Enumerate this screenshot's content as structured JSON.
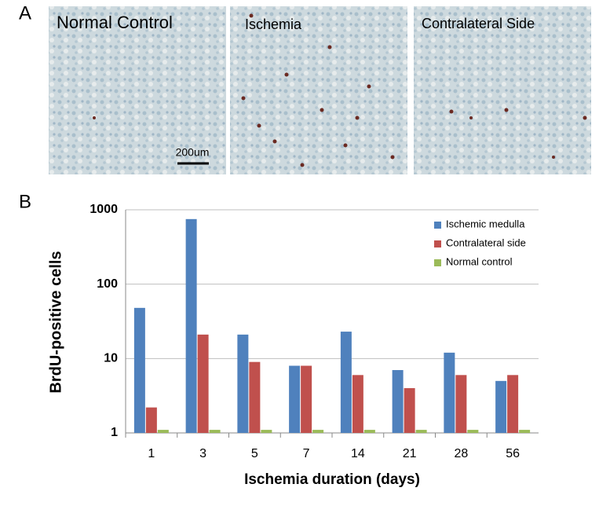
{
  "panel_labels": [
    "A",
    "B"
  ],
  "micrographs": [
    {
      "title": "Normal Control"
    },
    {
      "title": "Ischemia"
    },
    {
      "title": "Contralateral Side"
    }
  ],
  "scale_bar": "200um",
  "chart_data": {
    "type": "bar",
    "x_label": "Ischemia duration (days)",
    "y_label": "BrdU-positive cells",
    "categories": [
      "1",
      "3",
      "5",
      "7",
      "14",
      "21",
      "28",
      "56"
    ],
    "series": [
      {
        "name": "Ischemic medulla",
        "color": "#4f81bd",
        "values": [
          48,
          750,
          21,
          8,
          23,
          7,
          12,
          5
        ]
      },
      {
        "name": "Contralateral side",
        "color": "#c0504d",
        "values": [
          2.2,
          21,
          9,
          8,
          6,
          4,
          6,
          6
        ]
      },
      {
        "name": "Normal control",
        "color": "#9bbb59",
        "values": [
          1.1,
          1.1,
          1.1,
          1.1,
          1.1,
          1.1,
          1.1,
          1.1
        ]
      }
    ],
    "ylim": [
      1,
      1000
    ],
    "yticks": [
      1,
      10,
      100,
      1000
    ],
    "log_scale": true,
    "grid": true,
    "legend": "top-right"
  }
}
